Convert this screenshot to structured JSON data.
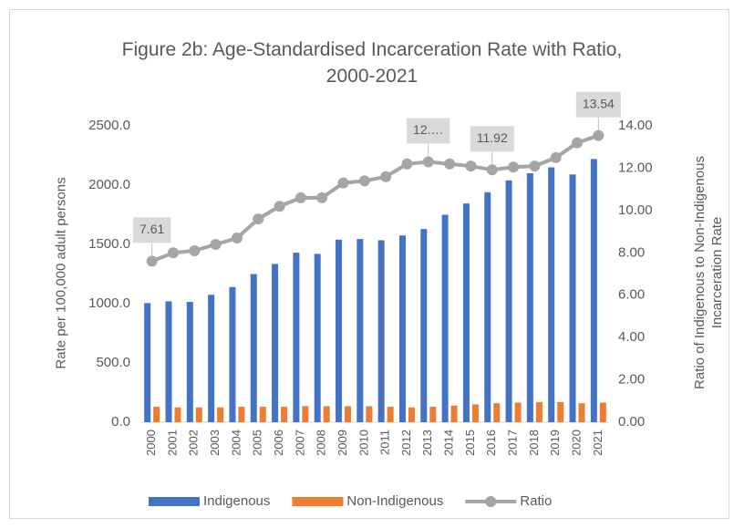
{
  "chart_data": {
    "type": "bar",
    "title": "Figure 2b: Age-Standardised Incarceration Rate with Ratio, 2000-2021",
    "y_label": "Rate per 100,000 adult persons",
    "y2_label": "Ratio of Indigenous to Non-Indigenous Incarceration Rate",
    "categories": [
      "2000",
      "2001",
      "2002",
      "2003",
      "2004",
      "2005",
      "2006",
      "2007",
      "2008",
      "2009",
      "2010",
      "2011",
      "2012",
      "2013",
      "2014",
      "2015",
      "2016",
      "2017",
      "2018",
      "2019",
      "2020",
      "2021"
    ],
    "series": [
      {
        "name": "Indigenous",
        "type": "bar",
        "color": "#4472c4",
        "values": [
          1005,
          1020,
          1015,
          1075,
          1140,
          1250,
          1335,
          1430,
          1420,
          1540,
          1545,
          1535,
          1575,
          1630,
          1750,
          1845,
          1940,
          2040,
          2100,
          2150,
          2090,
          2220
        ]
      },
      {
        "name": "Non-Indigenous",
        "type": "bar",
        "color": "#ed7d31",
        "values": [
          130,
          125,
          125,
          125,
          130,
          130,
          130,
          135,
          135,
          135,
          135,
          130,
          125,
          130,
          140,
          150,
          160,
          165,
          170,
          170,
          160,
          165
        ]
      },
      {
        "name": "Ratio",
        "type": "line",
        "axis": "y2",
        "color": "#a5a5a5",
        "values": [
          7.61,
          8.0,
          8.1,
          8.4,
          8.7,
          9.6,
          10.2,
          10.6,
          10.6,
          11.3,
          11.4,
          11.6,
          12.2,
          12.3,
          12.2,
          12.1,
          11.92,
          12.05,
          12.1,
          12.5,
          13.2,
          13.54
        ],
        "value_labels": [
          "7.61",
          null,
          null,
          null,
          null,
          null,
          null,
          null,
          null,
          null,
          null,
          null,
          null,
          "12.…",
          null,
          null,
          "11.92",
          null,
          null,
          null,
          null,
          "13.54"
        ]
      }
    ],
    "ylim": [
      0,
      2500
    ],
    "yticks": [
      {
        "value": 0,
        "label": "0.0"
      },
      {
        "value": 500,
        "label": "500.0"
      },
      {
        "value": 1000,
        "label": "1000.0"
      },
      {
        "value": 1500,
        "label": "1500.0"
      },
      {
        "value": 2000,
        "label": "2000.0"
      },
      {
        "value": 2500,
        "label": "2500.0"
      }
    ],
    "y2lim": [
      0,
      14
    ],
    "y2ticks": [
      {
        "value": 0,
        "label": "0.00"
      },
      {
        "value": 2,
        "label": "2.00"
      },
      {
        "value": 4,
        "label": "4.00"
      },
      {
        "value": 6,
        "label": "6.00"
      },
      {
        "value": 8,
        "label": "8.00"
      },
      {
        "value": 10,
        "label": "10.00"
      },
      {
        "value": 12,
        "label": "12.00"
      },
      {
        "value": 14,
        "label": "14.00"
      }
    ],
    "grid": false,
    "legend": "bottom"
  }
}
